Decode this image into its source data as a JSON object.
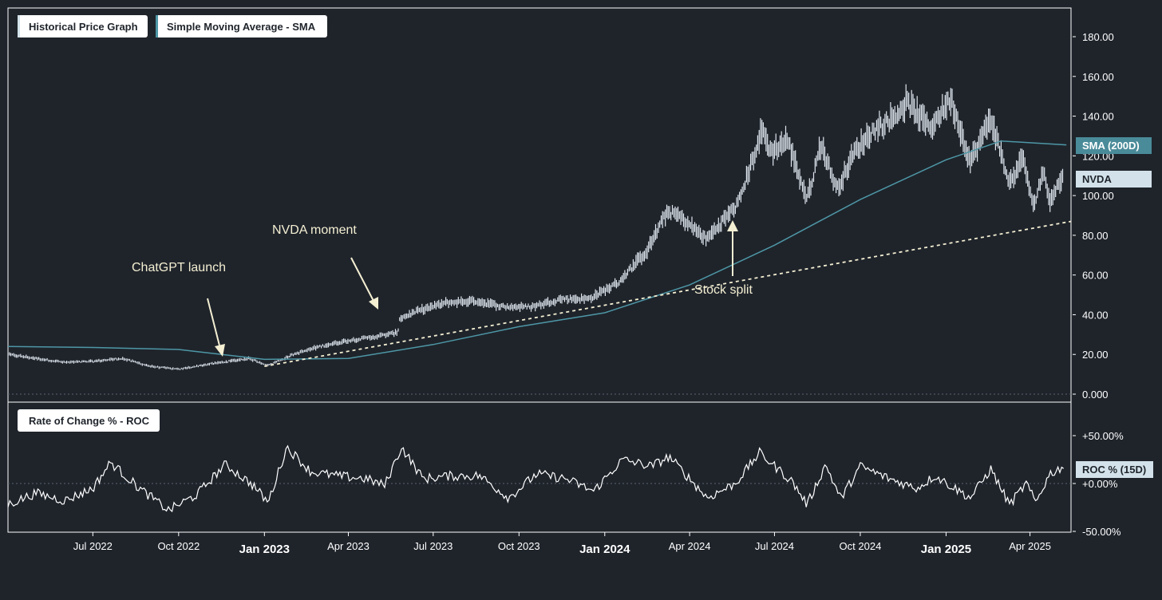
{
  "legend": {
    "price_label": "Historical Price Graph",
    "sma_label": "Simple Moving Average - SMA",
    "roc_label": "Rate of Change % - ROC"
  },
  "chips": {
    "sma": "SMA (200D)",
    "nvda": "NVDA",
    "roc": "ROC % (15D)"
  },
  "colors": {
    "background": "#1f242b",
    "price": "#dfe6ee",
    "sma": "#4e97a6",
    "trend": "#f4efd2",
    "annotation": "#f4efd2",
    "sma_chip": "#4a8b99",
    "nvda_chip": "#d3e2ea",
    "roc_chip": "#d3e2ea"
  },
  "chart_data": [
    {
      "type": "line",
      "ylim": [
        0,
        190
      ],
      "y_ticks": [
        "0.000",
        "20.00",
        "40.00",
        "60.00",
        "80.00",
        "100.00",
        "120.00",
        "140.00",
        "160.00",
        "180.00"
      ],
      "y_tick_values": [
        0,
        20,
        40,
        60,
        80,
        100,
        120,
        140,
        160,
        180
      ],
      "x_range": [
        "2022-04-01",
        "2025-05-15"
      ],
      "x_ticks": [
        {
          "date": "2022-07-01",
          "label": "Jul 2022",
          "major": false
        },
        {
          "date": "2022-10-01",
          "label": "Oct 2022",
          "major": false
        },
        {
          "date": "2023-01-01",
          "label": "Jan 2023",
          "major": true
        },
        {
          "date": "2023-04-01",
          "label": "Apr 2023",
          "major": false
        },
        {
          "date": "2023-07-01",
          "label": "Jul 2023",
          "major": false
        },
        {
          "date": "2023-10-01",
          "label": "Oct 2023",
          "major": false
        },
        {
          "date": "2024-01-01",
          "label": "Jan 2024",
          "major": true
        },
        {
          "date": "2024-04-01",
          "label": "Apr 2024",
          "major": false
        },
        {
          "date": "2024-07-01",
          "label": "Jul 2024",
          "major": false
        },
        {
          "date": "2024-10-01",
          "label": "Oct 2024",
          "major": false
        },
        {
          "date": "2025-01-01",
          "label": "Jan 2025",
          "major": true
        },
        {
          "date": "2025-04-01",
          "label": "Apr 2025",
          "major": false
        }
      ],
      "series": [
        {
          "name": "NVDA",
          "points": [
            [
              "2022-04-01",
              20.0
            ],
            [
              "2022-05-01",
              18.0
            ],
            [
              "2022-06-01",
              16.0
            ],
            [
              "2022-07-01",
              16.5
            ],
            [
              "2022-08-01",
              18.0
            ],
            [
              "2022-09-01",
              14.0
            ],
            [
              "2022-10-01",
              12.5
            ],
            [
              "2022-11-01",
              15.0
            ],
            [
              "2022-12-01",
              17.0
            ],
            [
              "2022-12-15",
              18.0
            ],
            [
              "2023-01-05",
              14.5
            ],
            [
              "2023-02-01",
              20.0
            ],
            [
              "2023-03-01",
              24.0
            ],
            [
              "2023-04-01",
              27.0
            ],
            [
              "2023-05-01",
              29.0
            ],
            [
              "2023-05-24",
              31.0
            ],
            [
              "2023-05-26",
              38.0
            ],
            [
              "2023-06-15",
              42.0
            ],
            [
              "2023-07-15",
              46.0
            ],
            [
              "2023-08-15",
              47.0
            ],
            [
              "2023-09-15",
              44.0
            ],
            [
              "2023-10-15",
              44.0
            ],
            [
              "2023-11-15",
              48.0
            ],
            [
              "2023-12-15",
              48.0
            ],
            [
              "2024-01-15",
              56.0
            ],
            [
              "2024-02-15",
              72.0
            ],
            [
              "2024-03-08",
              92.0
            ],
            [
              "2024-03-20",
              90.0
            ],
            [
              "2024-04-19",
              78.0
            ],
            [
              "2024-05-23",
              96.0
            ],
            [
              "2024-06-18",
              133.0
            ],
            [
              "2024-06-27",
              122.0
            ],
            [
              "2024-07-15",
              128.0
            ],
            [
              "2024-08-05",
              98.0
            ],
            [
              "2024-08-20",
              126.0
            ],
            [
              "2024-09-06",
              103.0
            ],
            [
              "2024-09-25",
              122.0
            ],
            [
              "2024-10-15",
              133.0
            ],
            [
              "2024-11-05",
              139.0
            ],
            [
              "2024-11-20",
              147.0
            ],
            [
              "2024-12-15",
              134.0
            ],
            [
              "2025-01-06",
              149.0
            ],
            [
              "2025-01-27",
              117.0
            ],
            [
              "2025-02-18",
              139.0
            ],
            [
              "2025-03-10",
              106.0
            ],
            [
              "2025-03-25",
              119.0
            ],
            [
              "2025-04-04",
              94.0
            ],
            [
              "2025-04-15",
              112.0
            ],
            [
              "2025-04-22",
              98.0
            ],
            [
              "2025-05-07",
              110.0
            ]
          ]
        },
        {
          "name": "SMA (200D)",
          "points": [
            [
              "2022-04-01",
              24.0
            ],
            [
              "2022-07-01",
              23.5
            ],
            [
              "2022-10-01",
              22.5
            ],
            [
              "2023-01-01",
              17.5
            ],
            [
              "2023-04-01",
              18.0
            ],
            [
              "2023-07-01",
              25.0
            ],
            [
              "2023-10-01",
              34.0
            ],
            [
              "2024-01-01",
              41.0
            ],
            [
              "2024-04-01",
              55.0
            ],
            [
              "2024-07-01",
              75.0
            ],
            [
              "2024-10-01",
              98.0
            ],
            [
              "2025-01-01",
              118.0
            ],
            [
              "2025-03-01",
              127.5
            ],
            [
              "2025-05-10",
              125.5
            ]
          ]
        },
        {
          "name": "trend",
          "points": [
            [
              "2023-01-01",
              14.0
            ],
            [
              "2025-05-15",
              87.0
            ]
          ]
        }
      ],
      "annotations": [
        {
          "text": "ChatGPT launch",
          "date": "2022-11-30"
        },
        {
          "text": "NVDA moment",
          "date": "2023-05-25"
        },
        {
          "text": "Stock split",
          "date": "2024-06-10"
        }
      ]
    },
    {
      "type": "line",
      "ylim": [
        -50,
        50
      ],
      "y_ticks": [
        "-50.00%",
        "+0.00%",
        "+50.00%"
      ],
      "y_tick_values": [
        -50,
        0,
        50
      ],
      "series": [
        {
          "name": "ROC % (15D)",
          "points": [
            [
              "2022-04-01",
              -22
            ],
            [
              "2022-05-01",
              -10
            ],
            [
              "2022-06-01",
              -18
            ],
            [
              "2022-07-01",
              -5
            ],
            [
              "2022-07-20",
              22
            ],
            [
              "2022-08-20",
              -5
            ],
            [
              "2022-09-20",
              -28
            ],
            [
              "2022-10-20",
              -12
            ],
            [
              "2022-11-20",
              20
            ],
            [
              "2022-12-20",
              -2
            ],
            [
              "2023-01-05",
              -20
            ],
            [
              "2023-01-25",
              38
            ],
            [
              "2023-02-20",
              12
            ],
            [
              "2023-03-20",
              8
            ],
            [
              "2023-04-20",
              5
            ],
            [
              "2023-05-10",
              -2
            ],
            [
              "2023-05-28",
              38
            ],
            [
              "2023-06-20",
              5
            ],
            [
              "2023-07-20",
              8
            ],
            [
              "2023-08-20",
              8
            ],
            [
              "2023-09-20",
              -15
            ],
            [
              "2023-10-20",
              10
            ],
            [
              "2023-11-20",
              5
            ],
            [
              "2023-12-20",
              -8
            ],
            [
              "2024-01-20",
              25
            ],
            [
              "2024-02-20",
              18
            ],
            [
              "2024-03-10",
              28
            ],
            [
              "2024-04-20",
              -15
            ],
            [
              "2024-05-20",
              0
            ],
            [
              "2024-06-15",
              32
            ],
            [
              "2024-07-20",
              2
            ],
            [
              "2024-08-05",
              -22
            ],
            [
              "2024-08-25",
              20
            ],
            [
              "2024-09-10",
              -16
            ],
            [
              "2024-10-01",
              18
            ],
            [
              "2024-11-01",
              5
            ],
            [
              "2024-12-01",
              -5
            ],
            [
              "2024-12-20",
              8
            ],
            [
              "2025-01-27",
              -15
            ],
            [
              "2025-02-18",
              15
            ],
            [
              "2025-03-10",
              -22
            ],
            [
              "2025-03-28",
              0
            ],
            [
              "2025-04-07",
              -20
            ],
            [
              "2025-04-22",
              10
            ],
            [
              "2025-05-07",
              18
            ]
          ]
        }
      ]
    }
  ]
}
